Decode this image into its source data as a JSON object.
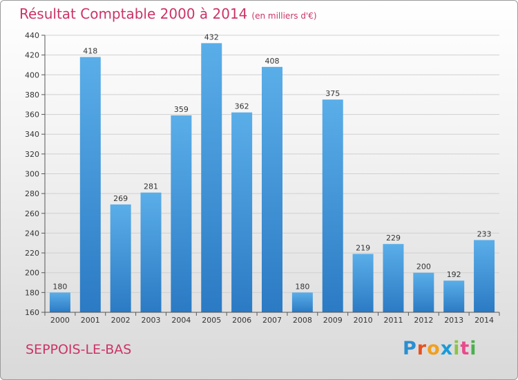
{
  "header": {
    "title": "Résultat Comptable 2000 à 2014",
    "subtitle": "(en milliers d'€)"
  },
  "footer": {
    "commune": "SEPPOIS-LE-BAS",
    "brand": "Proxiti",
    "brand_colors": [
      "#2a8fd0",
      "#e8501e",
      "#f0a020",
      "#1a9ad8",
      "#8bc34a",
      "#e84a8a",
      "#4caf50"
    ]
  },
  "colors": {
    "bar_light": "#5aaee8",
    "bar_dark": "#2b7ac4",
    "grid": "#d0d0d0",
    "axis": "#555555",
    "text": "#333333"
  },
  "chart_data": {
    "type": "bar",
    "title": "Résultat Comptable 2000 à 2014",
    "subtitle": "(en milliers d'€)",
    "xlabel": "",
    "ylabel": "",
    "categories": [
      "2000",
      "2001",
      "2002",
      "2003",
      "2004",
      "2005",
      "2006",
      "2007",
      "2008",
      "2009",
      "2010",
      "2011",
      "2012",
      "2013",
      "2014"
    ],
    "values": [
      180,
      418,
      269,
      281,
      359,
      432,
      362,
      408,
      180,
      375,
      219,
      229,
      200,
      192,
      233
    ],
    "ylim": [
      160,
      440
    ],
    "yticks": [
      160,
      180,
      200,
      220,
      240,
      260,
      280,
      300,
      320,
      340,
      360,
      380,
      400,
      420,
      440
    ],
    "grid": true
  }
}
